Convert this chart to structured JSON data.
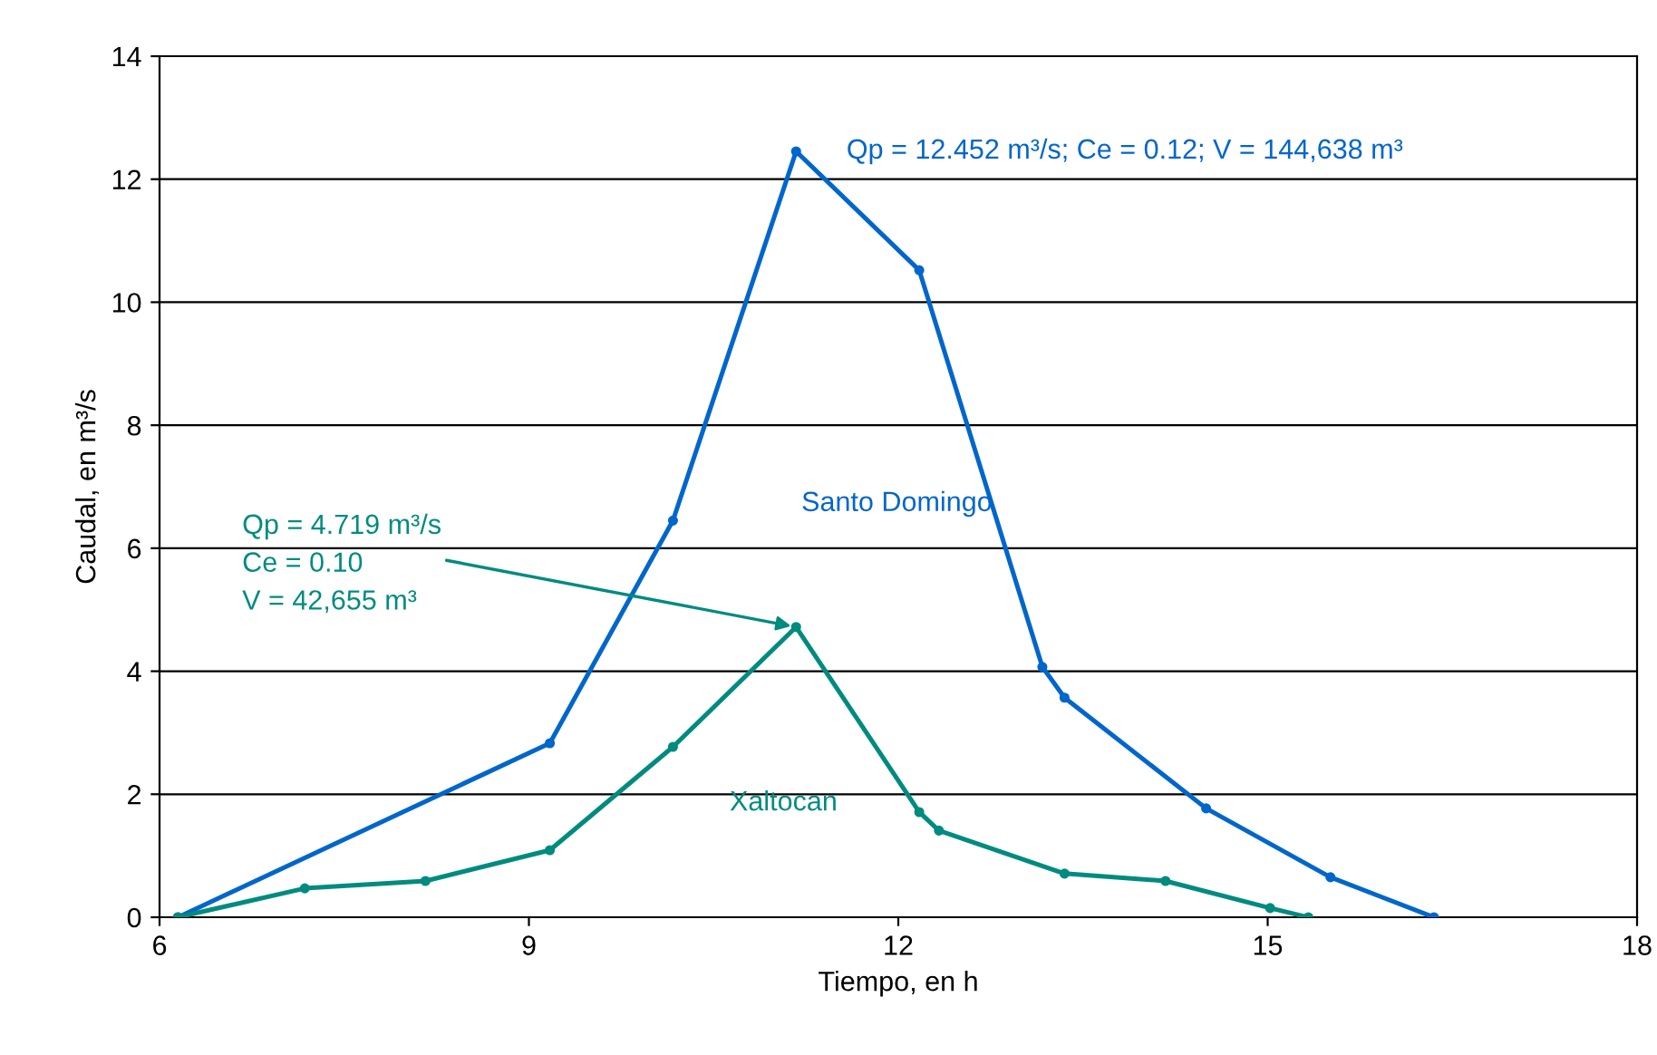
{
  "chart_data": {
    "type": "line",
    "xlabel": "Tiempo, en h",
    "ylabel": "Caudal, en m³/s",
    "xlim": [
      6,
      18
    ],
    "xticks": [
      6,
      9,
      12,
      15,
      18
    ],
    "ylim": [
      0,
      14
    ],
    "yticks": [
      0,
      2,
      4,
      6,
      8,
      10,
      12,
      14
    ],
    "grid": "y",
    "marker": "circle",
    "line_style": "solid",
    "series": [
      {
        "name": "Santo Domingo",
        "color": "#0066cc",
        "x": [
          6.15,
          9.17,
          10.17,
          11.17,
          12.17,
          13.17,
          13.35,
          14.5,
          15.51,
          16.35
        ],
        "values": [
          0,
          2.83,
          6.45,
          12.452,
          10.52,
          4.07,
          3.57,
          1.77,
          0.65,
          0
        ]
      },
      {
        "name": "Xaltocan",
        "color": "#008b80",
        "x": [
          6.15,
          7.18,
          8.16,
          9.17,
          10.17,
          11.17,
          12.17,
          12.33,
          13.35,
          14.17,
          15.02,
          15.33
        ],
        "values": [
          0,
          0.47,
          0.59,
          1.09,
          2.77,
          4.719,
          1.71,
          1.41,
          0.71,
          0.59,
          0.15,
          0
        ]
      }
    ],
    "annotations": [
      {
        "text": "Qp = 12.452 m³/s; Ce = 0.12; V = 144,638 m³",
        "x": 11.17,
        "y": 12.452
      },
      {
        "text": "Qp = 4.719 m³/s\nCe = 0.10\nV = 42,655 m³",
        "x": 11.17,
        "y": 4.719
      }
    ]
  }
}
